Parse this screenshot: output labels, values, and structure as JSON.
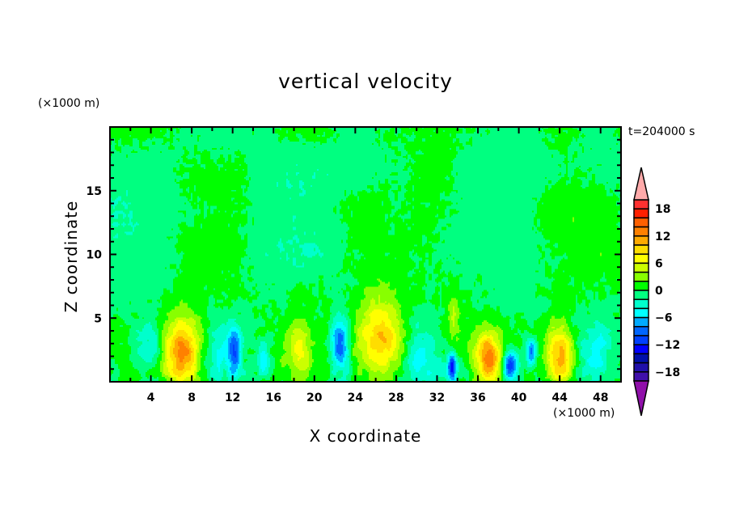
{
  "chart_data": {
    "type": "heatmap",
    "title": "vertical velocity",
    "xlabel": "X coordinate",
    "ylabel": "Z coordinate",
    "x_unit": "(×1000 m)",
    "y_unit": "(×1000 m)",
    "time_label": "t=204000 s",
    "xlim": [
      0,
      50
    ],
    "ylim": [
      0,
      20
    ],
    "x_ticks": [
      4,
      8,
      12,
      16,
      20,
      24,
      28,
      32,
      36,
      40,
      44,
      48
    ],
    "y_ticks": [
      5,
      10,
      15
    ],
    "colorbar": {
      "levels": [
        -20,
        20
      ],
      "step": 2,
      "tick_labels": [
        "18",
        "12",
        "6",
        "0",
        "-6",
        "-12",
        "-18"
      ],
      "tick_values": [
        18,
        12,
        6,
        0,
        -6,
        -12,
        -18
      ],
      "colors_high_to_low": [
        "#ff3030",
        "#ff2000",
        "#ff6000",
        "#ff8000",
        "#ffaa00",
        "#ffdd00",
        "#ffff00",
        "#ccff00",
        "#88ff00",
        "#00ff00",
        "#00ff80",
        "#00ffcc",
        "#00ffff",
        "#00aaff",
        "#0066ff",
        "#0040ff",
        "#0000ff",
        "#0010aa",
        "#2010aa",
        "#4010aa"
      ],
      "over_color": "#ffaaaa",
      "under_color": "#9010aa"
    },
    "features": [
      {
        "kind": "updraft",
        "x": 7,
        "z": 2.3,
        "peak": 13,
        "wx": 1.3,
        "wz": 1.9
      },
      {
        "kind": "updraft",
        "x": 26.5,
        "z": 3.3,
        "peak": 10,
        "wx": 1.5,
        "wz": 2.3
      },
      {
        "kind": "updraft",
        "x": 37,
        "z": 1.8,
        "peak": 13,
        "wx": 0.8,
        "wz": 1.3
      },
      {
        "kind": "updraft",
        "x": 44,
        "z": 2.0,
        "peak": 12,
        "wx": 1.0,
        "wz": 1.6
      },
      {
        "kind": "updraft",
        "x": 18.5,
        "z": 2.5,
        "peak": 6,
        "wx": 0.7,
        "wz": 1.6
      },
      {
        "kind": "updraft",
        "x": 33.6,
        "z": 5.0,
        "peak": 4,
        "wx": 0.4,
        "wz": 1.5
      },
      {
        "kind": "downdraft",
        "x": 22.5,
        "z": 3.0,
        "peak": -10,
        "wx": 0.6,
        "wz": 1.4
      },
      {
        "kind": "downdraft",
        "x": 33.5,
        "z": 1.2,
        "peak": -15,
        "wx": 0.3,
        "wz": 0.7
      },
      {
        "kind": "downdraft",
        "x": 39.2,
        "z": 1.3,
        "peak": -12,
        "wx": 0.45,
        "wz": 0.8
      },
      {
        "kind": "downdraft",
        "x": 41.2,
        "z": 2.4,
        "peak": -8,
        "wx": 0.35,
        "wz": 0.7
      },
      {
        "kind": "downdraft",
        "x": 12.2,
        "z": 2.3,
        "peak": -8,
        "wx": 0.4,
        "wz": 1.3
      },
      {
        "kind": "downdraft",
        "x": 15.0,
        "z": 1.6,
        "peak": -6,
        "wx": 0.5,
        "wz": 0.9
      },
      {
        "kind": "downdraft",
        "x": 4.0,
        "z": 2.5,
        "peak": -3.5,
        "wx": 1.0,
        "wz": 1.5
      },
      {
        "kind": "downdraft",
        "x": 11.0,
        "z": 2.5,
        "peak": -3.5,
        "wx": 1.2,
        "wz": 1.6
      },
      {
        "kind": "downdraft",
        "x": 30.5,
        "z": 2.5,
        "peak": -4,
        "wx": 1.2,
        "wz": 1.6
      },
      {
        "kind": "downdraft",
        "x": 47.5,
        "z": 2.5,
        "peak": -3,
        "wx": 1.0,
        "wz": 1.5
      }
    ]
  }
}
